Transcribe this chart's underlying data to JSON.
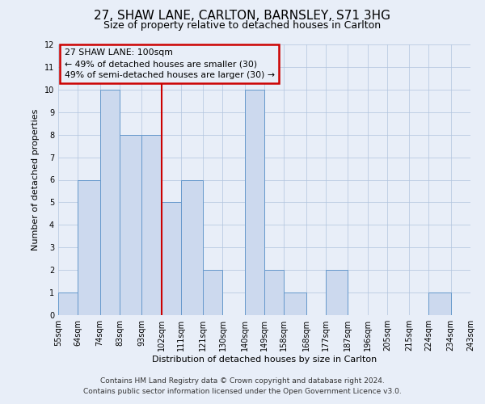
{
  "title": "27, SHAW LANE, CARLTON, BARNSLEY, S71 3HG",
  "subtitle": "Size of property relative to detached houses in Carlton",
  "xlabel": "Distribution of detached houses by size in Carlton",
  "ylabel": "Number of detached properties",
  "bin_labels": [
    "55sqm",
    "64sqm",
    "74sqm",
    "83sqm",
    "93sqm",
    "102sqm",
    "111sqm",
    "121sqm",
    "130sqm",
    "140sqm",
    "149sqm",
    "158sqm",
    "168sqm",
    "177sqm",
    "187sqm",
    "196sqm",
    "205sqm",
    "215sqm",
    "224sqm",
    "234sqm",
    "243sqm"
  ],
  "bin_edges": [
    55,
    64,
    74,
    83,
    93,
    102,
    111,
    121,
    130,
    140,
    149,
    158,
    168,
    177,
    187,
    196,
    205,
    215,
    224,
    234,
    243
  ],
  "bar_heights": [
    1,
    6,
    10,
    8,
    8,
    5,
    6,
    2,
    0,
    10,
    2,
    1,
    0,
    2,
    0,
    0,
    0,
    0,
    1,
    0
  ],
  "bar_color": "#ccd9ee",
  "bar_edgecolor": "#6699cc",
  "red_line_x": 102,
  "ylim": [
    0,
    12
  ],
  "yticks": [
    0,
    1,
    2,
    3,
    4,
    5,
    6,
    7,
    8,
    9,
    10,
    11,
    12
  ],
  "grid_color": "#b0c4de",
  "annotation_title": "27 SHAW LANE: 100sqm",
  "annotation_line1": "← 49% of detached houses are smaller (30)",
  "annotation_line2": "49% of semi-detached houses are larger (30) →",
  "annotation_box_color": "#cc0000",
  "footnote1": "Contains HM Land Registry data © Crown copyright and database right 2024.",
  "footnote2": "Contains public sector information licensed under the Open Government Licence v3.0.",
  "background_color": "#e8eef8",
  "title_fontsize": 11,
  "subtitle_fontsize": 9,
  "axis_label_fontsize": 8,
  "tick_fontsize": 7,
  "footnote_fontsize": 6.5
}
